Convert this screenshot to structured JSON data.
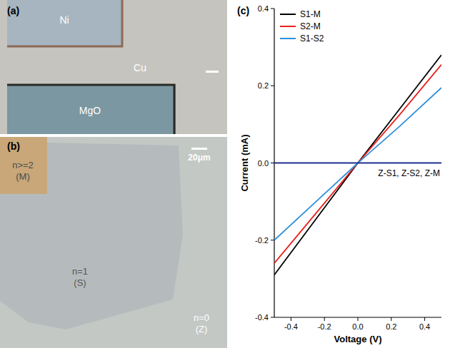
{
  "panel_a": {
    "label": "(a)",
    "regions": [
      "Ni",
      "Cu",
      "MgO"
    ]
  },
  "panel_b": {
    "label": "(b)",
    "scale_bar": "20μm",
    "regions": [
      [
        "n>=2",
        "(M)"
      ],
      [
        "n=1",
        "(S)"
      ],
      [
        "n=0",
        "(Z)"
      ]
    ]
  },
  "panel_c": {
    "label": "(c)"
  },
  "chart_data": {
    "type": "line",
    "x_label": "Voltage (V)",
    "y_label": "Current (mA)",
    "x": [
      -0.5,
      -0.25,
      0,
      0.25,
      0.5
    ],
    "series": [
      {
        "name": "S1-M",
        "color": "#000000",
        "values": [
          -0.29,
          -0.145,
          0,
          0.14,
          0.28
        ]
      },
      {
        "name": "S2-M",
        "color": "#e8201c",
        "values": [
          -0.26,
          -0.13,
          0,
          0.125,
          0.255
        ]
      },
      {
        "name": "S1-S2",
        "color": "#2f8fd8",
        "values": [
          -0.2,
          -0.1,
          0,
          0.095,
          0.195
        ]
      },
      {
        "name": "Z-S1, Z-S2, Z-M",
        "color": "#1f2f8f",
        "values": [
          0,
          0,
          0,
          0,
          0
        ]
      }
    ],
    "xlim": [
      -0.5,
      0.5
    ],
    "xticks": [
      -0.4,
      -0.2,
      {
        "value": 0,
        "label": "0.0"
      },
      0.2,
      0.4
    ],
    "ylim": [
      -0.4,
      0.4
    ],
    "yticks": [
      -0.4,
      -0.2,
      {
        "value": 0,
        "label": "0.0"
      },
      0.2,
      0.4
    ],
    "legend": "upper left",
    "grid": false
  }
}
